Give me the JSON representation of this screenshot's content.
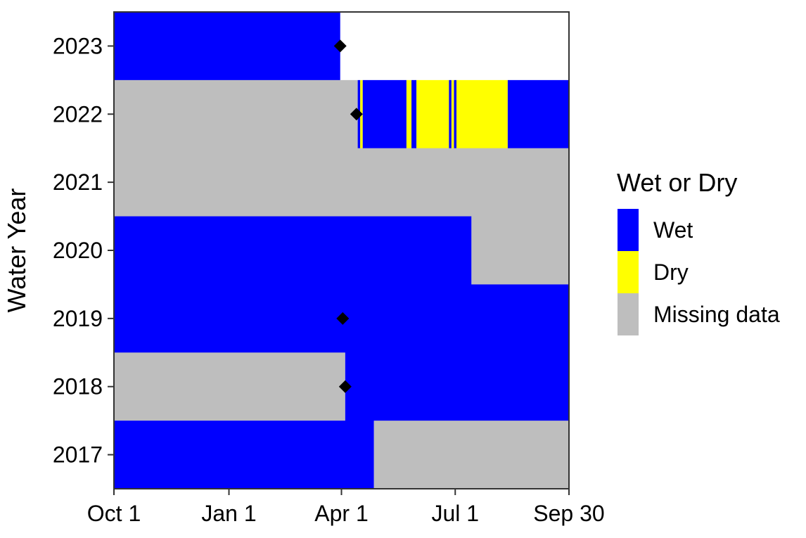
{
  "chart_data": {
    "type": "heatmap",
    "title": "",
    "xlabel": "",
    "ylabel": "Water Year",
    "x_unit": "day of water year (Oct 1 = 1)",
    "xlim": [
      1,
      365
    ],
    "x_ticks": [
      {
        "day": 1,
        "label": "Oct 1"
      },
      {
        "day": 93,
        "label": "Jan 1"
      },
      {
        "day": 183,
        "label": "Apr 1"
      },
      {
        "day": 274,
        "label": "Jul 1"
      },
      {
        "day": 365,
        "label": "Sep 30"
      }
    ],
    "years": [
      "2023",
      "2022",
      "2021",
      "2020",
      "2019",
      "2018",
      "2017"
    ],
    "legend": {
      "title": "Wet or Dry",
      "position": "right",
      "items": [
        {
          "key": "wet",
          "label": "Wet",
          "color": "#0000ff"
        },
        {
          "key": "dry",
          "label": "Dry",
          "color": "#ffff00"
        },
        {
          "key": "missing",
          "label": "Missing data",
          "color": "#bebebe"
        }
      ]
    },
    "series": [
      {
        "year": "2023",
        "segments": [
          {
            "start": 1,
            "end": 182,
            "status": "wet"
          }
        ]
      },
      {
        "year": "2022",
        "segments": [
          {
            "start": 1,
            "end": 196,
            "status": "missing"
          },
          {
            "start": 196,
            "end": 198,
            "status": "wet"
          },
          {
            "start": 198,
            "end": 200,
            "status": "dry"
          },
          {
            "start": 200,
            "end": 235,
            "status": "wet"
          },
          {
            "start": 235,
            "end": 239,
            "status": "dry"
          },
          {
            "start": 239,
            "end": 243,
            "status": "wet"
          },
          {
            "start": 243,
            "end": 269,
            "status": "dry"
          },
          {
            "start": 269,
            "end": 271,
            "status": "wet"
          },
          {
            "start": 271,
            "end": 273,
            "status": "dry"
          },
          {
            "start": 273,
            "end": 275,
            "status": "wet"
          },
          {
            "start": 275,
            "end": 316,
            "status": "dry"
          },
          {
            "start": 316,
            "end": 365,
            "status": "wet"
          }
        ]
      },
      {
        "year": "2021",
        "segments": [
          {
            "start": 1,
            "end": 365,
            "status": "missing"
          }
        ]
      },
      {
        "year": "2020",
        "segments": [
          {
            "start": 1,
            "end": 287,
            "status": "wet"
          },
          {
            "start": 287,
            "end": 365,
            "status": "missing"
          }
        ]
      },
      {
        "year": "2019",
        "segments": [
          {
            "start": 1,
            "end": 365,
            "status": "wet"
          }
        ]
      },
      {
        "year": "2018",
        "segments": [
          {
            "start": 1,
            "end": 186,
            "status": "missing"
          },
          {
            "start": 186,
            "end": 365,
            "status": "wet"
          }
        ]
      },
      {
        "year": "2017",
        "segments": [
          {
            "start": 1,
            "end": 209,
            "status": "wet"
          },
          {
            "start": 209,
            "end": 365,
            "status": "missing"
          }
        ]
      }
    ],
    "markers": [
      {
        "year": "2023",
        "day": 182
      },
      {
        "year": "2022",
        "day": 195
      },
      {
        "year": "2019",
        "day": 184
      },
      {
        "year": "2018",
        "day": 186
      }
    ],
    "marker_shape": "diamond",
    "marker_color": "#000000",
    "grid": false
  }
}
